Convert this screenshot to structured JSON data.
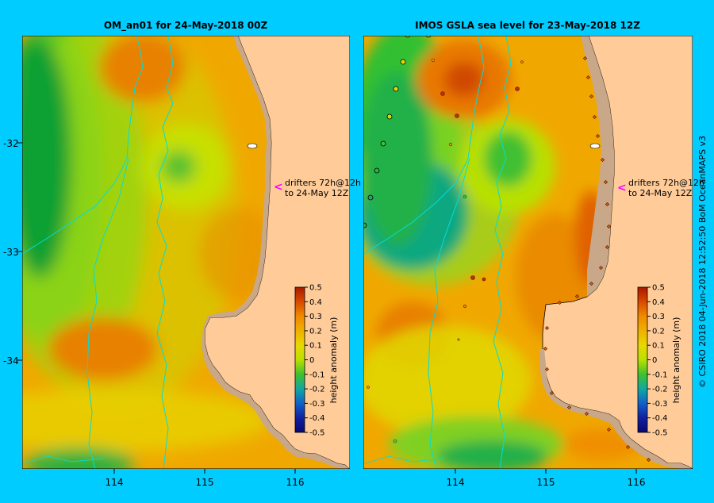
{
  "left_panel": {
    "title": "OM_an01  for 24-May-2018 00Z",
    "annotation_line1": "drifters 72h@12h",
    "annotation_line2": "to 24-May 12Z"
  },
  "right_panel": {
    "title": "IMOS GSLA sea level  for 23-May-2018 12Z",
    "annotation_line1": "drifters 72h@12h",
    "annotation_line2": "to 24-May 12Z"
  },
  "y_axis_labels": [
    "-32",
    "-33",
    "-34"
  ],
  "x_axis_labels": [
    "114",
    "115",
    "116"
  ],
  "colorbar": {
    "label": "height anomaly (m)",
    "ticks": [
      "0.5",
      "0.4",
      "0.3",
      "0.2",
      "0.1",
      "0",
      "-0.1",
      "-0.2",
      "-0.3",
      "-0.4",
      "-0.5"
    ],
    "colors": [
      "#b02000",
      "#d84a00",
      "#f08a00",
      "#f0b000",
      "#e8d800",
      "#c8e600",
      "#8ada10",
      "#30c040",
      "#10a8a0",
      "#1060c8",
      "#1020a0",
      "#080870"
    ]
  },
  "credit": "© CSIRO 2018  04-Jun-2018 12:52:50 BoM OceanMAPS v3",
  "colors": {
    "background": "#00ccff",
    "land": "#ffcc99",
    "shelf": "#c8a888",
    "marker_arrow": "#ff00ff"
  }
}
